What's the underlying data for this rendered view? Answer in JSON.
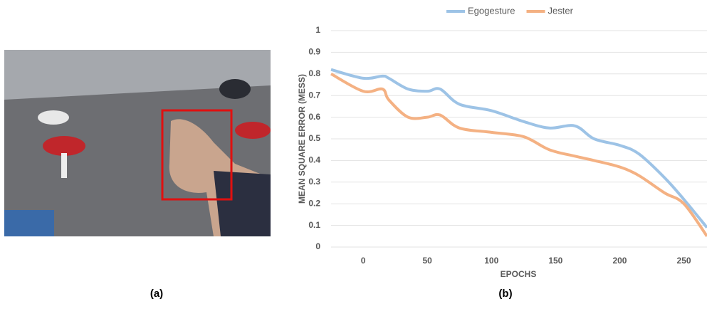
{
  "captions": [
    "(a)",
    "(b)"
  ],
  "chart_data": {
    "type": "line",
    "xlabel": "EPOCHS",
    "ylabel": "MEAN SQUARE ERROR (MESS)",
    "x": [
      -25,
      0,
      15,
      20,
      35,
      50,
      60,
      75,
      100,
      125,
      145,
      165,
      180,
      200,
      215,
      235,
      250,
      268
    ],
    "series": [
      {
        "name": "Egogesture",
        "color": "#9dc3e6",
        "values": [
          0.82,
          0.78,
          0.79,
          0.78,
          0.73,
          0.72,
          0.73,
          0.66,
          0.63,
          0.58,
          0.55,
          0.56,
          0.5,
          0.47,
          0.43,
          0.32,
          0.22,
          0.09
        ]
      },
      {
        "name": "Jester",
        "color": "#f4b183",
        "values": [
          0.8,
          0.72,
          0.73,
          0.68,
          0.6,
          0.6,
          0.61,
          0.55,
          0.53,
          0.51,
          0.45,
          0.42,
          0.4,
          0.37,
          0.33,
          0.25,
          0.2,
          0.05
        ]
      }
    ],
    "xlim": [
      -25,
      268
    ],
    "xticks": [
      0,
      50,
      100,
      150,
      200,
      250
    ],
    "ylim": [
      0,
      1
    ],
    "yticks": [
      0,
      0.1,
      0.2,
      0.3,
      0.4,
      0.5,
      0.6,
      0.7,
      0.8,
      0.9,
      1
    ],
    "grid": true,
    "legend": "top"
  }
}
